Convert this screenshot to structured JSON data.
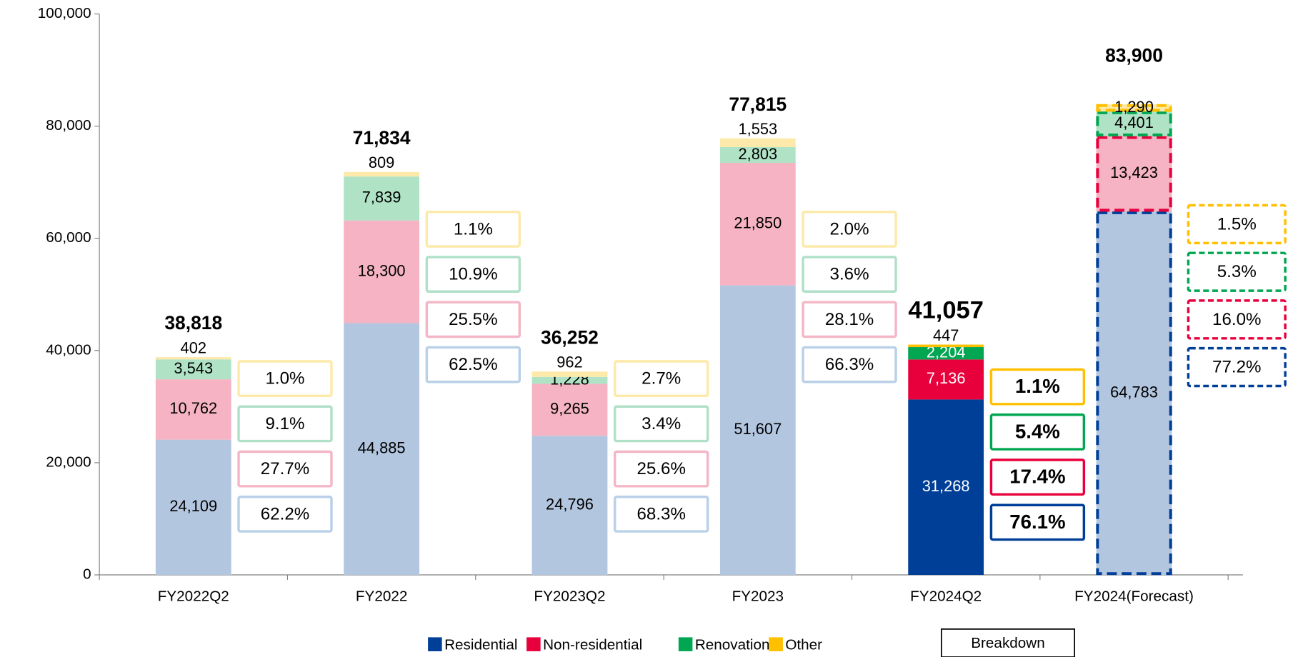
{
  "chart_data": {
    "type": "stacked_bar",
    "categories": [
      "FY2022Q2",
      "FY2022",
      "FY2023Q2",
      "FY2023",
      "FY2024Q2",
      "FY2024(Forecast)"
    ],
    "series": [
      {
        "name": "Residential",
        "color": "#003f98",
        "light_color": "#b3c6e0",
        "box_color": "#b8d0e8",
        "values": [
          24109,
          44885,
          24796,
          51607,
          31268,
          64783
        ],
        "value_labels": [
          "24,109",
          "44,885",
          "24,796",
          "51,607",
          "31,268",
          "64,783"
        ],
        "shares": [
          62.2,
          62.5,
          68.3,
          66.3,
          76.1,
          77.2
        ],
        "share_labels": [
          "62.2%",
          "62.5%",
          "68.3%",
          "66.3%",
          "76.1%",
          "77.2%"
        ]
      },
      {
        "name": "Non-residential",
        "color": "#e8003c",
        "light_color": "#f5b3c3",
        "box_color": "#f4b6c6",
        "values": [
          10762,
          18300,
          9265,
          21850,
          7136,
          13423
        ],
        "value_labels": [
          "10,762",
          "18,300",
          "9,265",
          "21,850",
          "7,136",
          "13,423"
        ],
        "shares": [
          27.7,
          25.5,
          25.6,
          28.1,
          17.4,
          16.0
        ],
        "share_labels": [
          "27.7%",
          "25.5%",
          "25.6%",
          "28.1%",
          "17.4%",
          "16.0%"
        ]
      },
      {
        "name": "Renovation",
        "color": "#00a651",
        "light_color": "#b0e3c6",
        "box_color": "#b0e0c8",
        "values": [
          3543,
          7839,
          1228,
          2803,
          2204,
          4401
        ],
        "value_labels": [
          "3,543",
          "7,839",
          "1,228",
          "2,803",
          "2,204",
          "4,401"
        ],
        "shares": [
          9.1,
          10.9,
          3.4,
          3.6,
          5.4,
          5.3
        ],
        "share_labels": [
          "9.1%",
          "10.9%",
          "3.4%",
          "3.6%",
          "5.4%",
          "5.3%"
        ]
      },
      {
        "name": "Other",
        "color": "#ffc000",
        "light_color": "#fde9a9",
        "box_color": "#fde9a9",
        "values": [
          402,
          809,
          962,
          1553,
          447,
          1290
        ],
        "value_labels": [
          "402",
          "809",
          "962",
          "1,553",
          "447",
          "1,290"
        ],
        "shares": [
          1.0,
          1.1,
          2.7,
          2.0,
          1.1,
          1.5
        ],
        "share_labels": [
          "1.0%",
          "1.1%",
          "2.7%",
          "2.0%",
          "1.1%",
          "1.5%"
        ]
      }
    ],
    "totals": [
      38818,
      71834,
      36252,
      77815,
      41057,
      83900
    ],
    "total_labels": [
      "38,818",
      "71,834",
      "36,252",
      "77,815",
      "41,057",
      "83,900"
    ],
    "bar_styles": [
      "light",
      "light",
      "light",
      "light",
      "solid",
      "dashed"
    ],
    "breakdown_label": "Breakdown",
    "ylim": [
      0,
      100000
    ],
    "yticks": [
      0,
      {
        "value": 20000,
        "label": "20,000"
      },
      {
        "value": 40000,
        "label": "40,000"
      },
      {
        "value": 60000,
        "label": "60,000"
      },
      {
        "value": 80000,
        "label": "80,000"
      },
      {
        "value": 100000,
        "label": "100,000"
      }
    ],
    "grid": false
  }
}
